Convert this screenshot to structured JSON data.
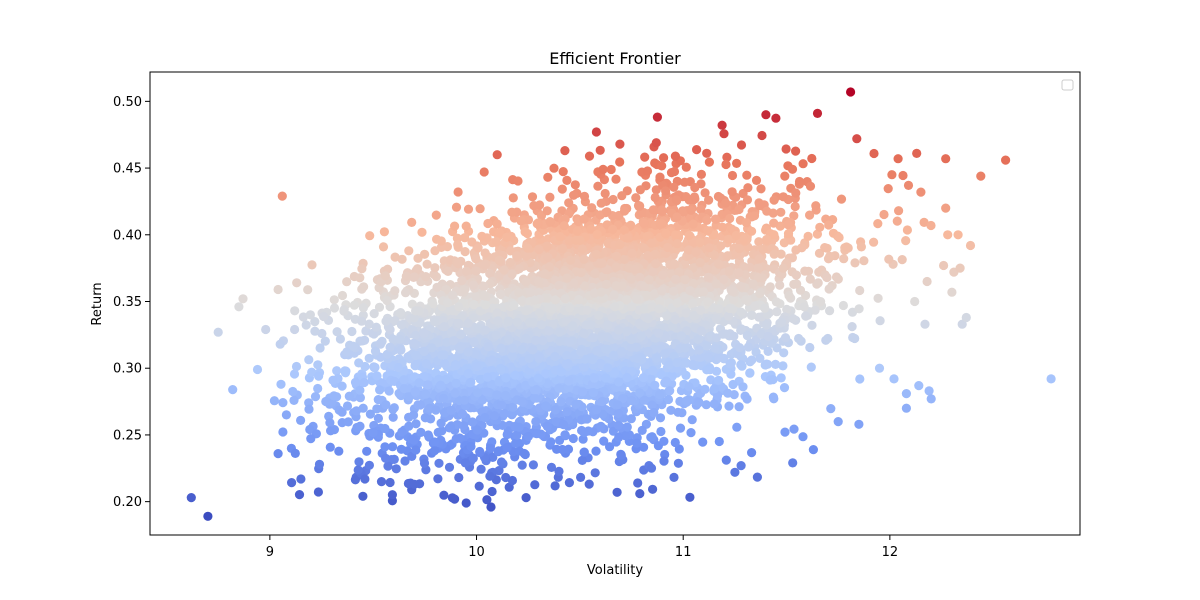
{
  "chart_data": {
    "type": "scatter",
    "title": "Efficient Frontier",
    "xlabel": "Volatility",
    "ylabel": "Return",
    "xlim": [
      8.42,
      12.92
    ],
    "ylim": [
      0.175,
      0.522
    ],
    "xticks": [
      9,
      10,
      11,
      12
    ],
    "yticks": [
      0.2,
      0.25,
      0.3,
      0.35,
      0.4,
      0.45,
      0.5
    ],
    "grid": false,
    "legend": "top-right (empty)",
    "colormap": "coolwarm",
    "color_by": "Return",
    "colormap_stops": [
      "#3b4cc0",
      "#6f92f3",
      "#aac7fd",
      "#dddcdc",
      "#f7b89c",
      "#e7745b",
      "#b40426"
    ],
    "points": [
      {
        "x": 8.62,
        "y": 0.203
      },
      {
        "x": 8.7,
        "y": 0.189
      },
      {
        "x": 9.06,
        "y": 0.429
      },
      {
        "x": 8.75,
        "y": 0.327
      },
      {
        "x": 8.82,
        "y": 0.284
      },
      {
        "x": 8.87,
        "y": 0.352
      },
      {
        "x": 8.85,
        "y": 0.346
      },
      {
        "x": 8.94,
        "y": 0.299
      },
      {
        "x": 8.98,
        "y": 0.329
      },
      {
        "x": 9.04,
        "y": 0.359
      },
      {
        "x": 9.05,
        "y": 0.318
      },
      {
        "x": 9.04,
        "y": 0.236
      },
      {
        "x": 9.13,
        "y": 0.364
      },
      {
        "x": 9.12,
        "y": 0.343
      },
      {
        "x": 9.15,
        "y": 0.217
      },
      {
        "x": 9.24,
        "y": 0.228
      },
      {
        "x": 9.45,
        "y": 0.204
      },
      {
        "x": 9.46,
        "y": 0.217
      },
      {
        "x": 9.54,
        "y": 0.215
      },
      {
        "x": 9.7,
        "y": 0.213
      },
      {
        "x": 9.95,
        "y": 0.199
      },
      {
        "x": 10.07,
        "y": 0.196
      },
      {
        "x": 10.24,
        "y": 0.203
      },
      {
        "x": 10.1,
        "y": 0.46
      },
      {
        "x": 10.58,
        "y": 0.477
      },
      {
        "x": 10.68,
        "y": 0.207
      },
      {
        "x": 10.79,
        "y": 0.206
      },
      {
        "x": 10.78,
        "y": 0.214
      },
      {
        "x": 10.87,
        "y": 0.469
      },
      {
        "x": 11.28,
        "y": 0.227
      },
      {
        "x": 11.25,
        "y": 0.222
      },
      {
        "x": 11.4,
        "y": 0.49
      },
      {
        "x": 11.53,
        "y": 0.229
      },
      {
        "x": 11.63,
        "y": 0.239
      },
      {
        "x": 11.65,
        "y": 0.491
      },
      {
        "x": 11.81,
        "y": 0.507
      },
      {
        "x": 11.84,
        "y": 0.472
      },
      {
        "x": 11.85,
        "y": 0.258
      },
      {
        "x": 11.75,
        "y": 0.26
      },
      {
        "x": 12.08,
        "y": 0.281
      },
      {
        "x": 12.08,
        "y": 0.27
      },
      {
        "x": 12.14,
        "y": 0.287
      },
      {
        "x": 12.19,
        "y": 0.283
      },
      {
        "x": 12.2,
        "y": 0.277
      },
      {
        "x": 12.17,
        "y": 0.333
      },
      {
        "x": 12.35,
        "y": 0.333
      },
      {
        "x": 12.37,
        "y": 0.338
      },
      {
        "x": 12.3,
        "y": 0.357
      },
      {
        "x": 12.39,
        "y": 0.392
      },
      {
        "x": 12.44,
        "y": 0.444
      },
      {
        "x": 12.56,
        "y": 0.456
      },
      {
        "x": 12.27,
        "y": 0.457
      },
      {
        "x": 12.13,
        "y": 0.461
      },
      {
        "x": 12.04,
        "y": 0.457
      },
      {
        "x": 12.01,
        "y": 0.445
      },
      {
        "x": 12.09,
        "y": 0.437
      },
      {
        "x": 12.15,
        "y": 0.432
      },
      {
        "x": 12.27,
        "y": 0.42
      },
      {
        "x": 12.33,
        "y": 0.4
      },
      {
        "x": 12.28,
        "y": 0.4
      },
      {
        "x": 12.31,
        "y": 0.372
      },
      {
        "x": 12.26,
        "y": 0.377
      },
      {
        "x": 12.34,
        "y": 0.375
      },
      {
        "x": 12.18,
        "y": 0.365
      },
      {
        "x": 12.12,
        "y": 0.35
      },
      {
        "x": 12.02,
        "y": 0.292
      },
      {
        "x": 11.95,
        "y": 0.3
      },
      {
        "x": 12.78,
        "y": 0.292
      }
    ],
    "cloud": {
      "n": 5500,
      "x_mean": 10.5,
      "x_sd": 0.52,
      "y_mean": 0.335,
      "y_sd": 0.046,
      "correlation": 0.38
    }
  }
}
